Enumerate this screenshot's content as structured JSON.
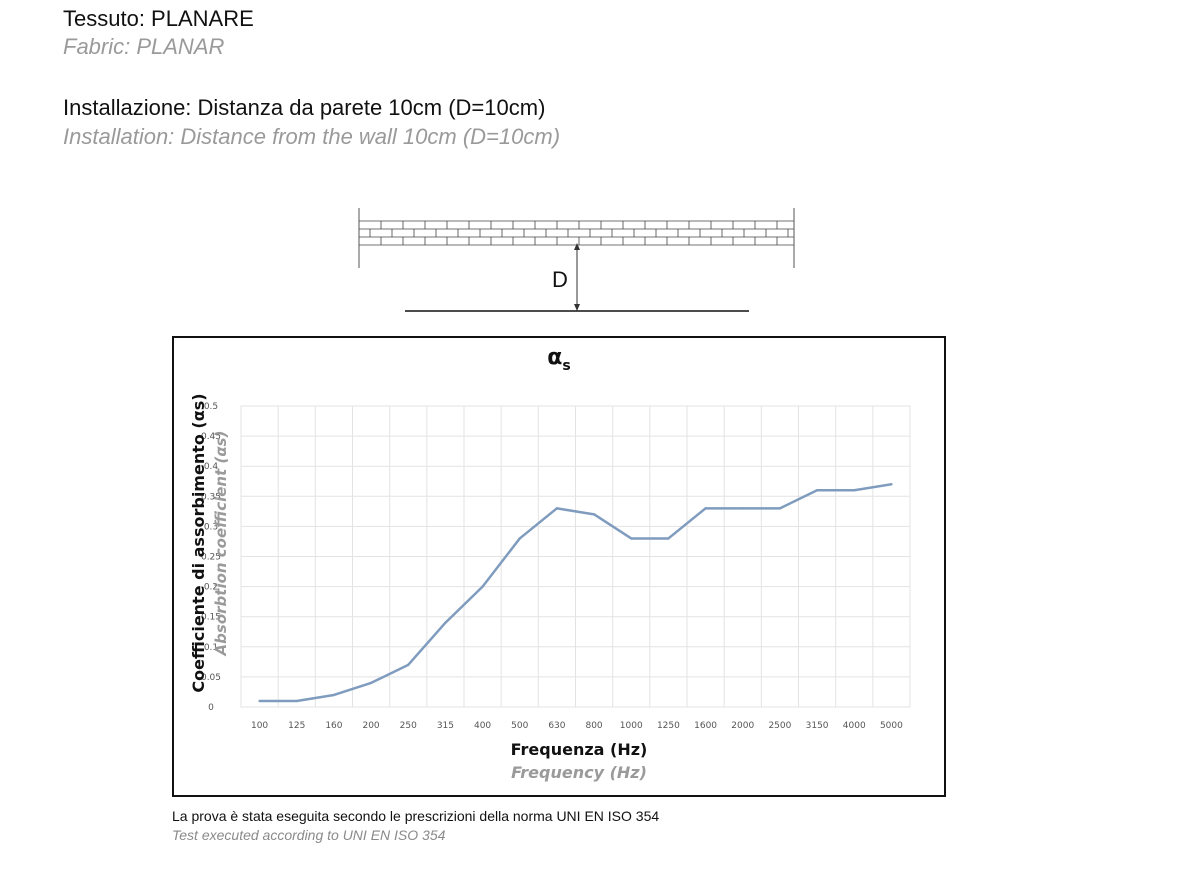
{
  "header": {
    "fabric_it": "Tessuto: PLANARE",
    "fabric_en": "Fabric: PLANAR",
    "install_it": "Installazione: Distanza da parete 10cm (D=10cm)",
    "install_en": "Installation: Distance from the wall 10cm (D=10cm)"
  },
  "diagram": {
    "distance_label": "D"
  },
  "chart_data": {
    "type": "line",
    "title": "α",
    "title_subscript": "s",
    "ylabel": "Coefficiente di assorbimento (αs)",
    "ylabel_en": "Absorbtion coefficient (αs)",
    "xlabel": "Frequenza (Hz)",
    "xlabel_en": "Frequency (Hz)",
    "categories": [
      "100",
      "125",
      "160",
      "200",
      "250",
      "315",
      "400",
      "500",
      "630",
      "800",
      "1000",
      "1250",
      "1600",
      "2000",
      "2500",
      "3150",
      "4000",
      "5000"
    ],
    "yticks": [
      "0",
      "0.05",
      "0.1",
      "0.15",
      "0.2",
      "0.25",
      "0.3",
      "0.35",
      "0.4",
      "0.45",
      "0.5"
    ],
    "ylim": [
      0,
      0.5
    ],
    "grid": true,
    "line_color": "#7f9cbf",
    "series": [
      {
        "values": [
          0.01,
          0.01,
          0.02,
          0.04,
          0.07,
          0.14,
          0.2,
          0.28,
          0.33,
          0.32,
          0.28,
          0.28,
          0.33,
          0.33,
          0.33,
          0.36,
          0.36,
          0.37
        ]
      }
    ]
  },
  "footer": {
    "note_it": "La prova è stata eseguita secondo le prescrizioni della norma UNI EN ISO 354",
    "note_en": "Test executed according  to UNI EN ISO 354"
  }
}
